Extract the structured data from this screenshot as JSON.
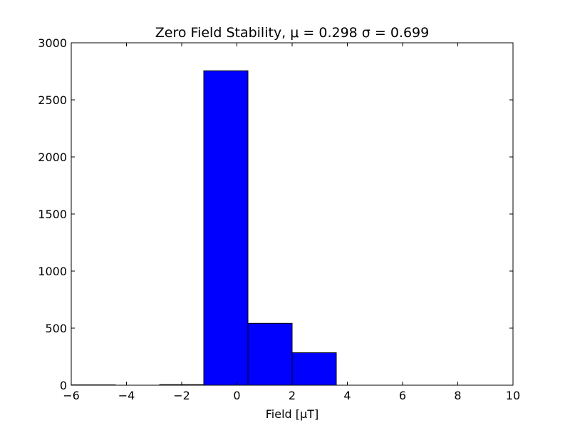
{
  "chart_data": {
    "type": "bar",
    "title": "Zero Field Stability, μ = 0.298 σ = 0.699",
    "xlabel": "Field [μT]",
    "ylabel": "",
    "xlim": [
      -6,
      10
    ],
    "ylim": [
      0,
      3000
    ],
    "xticks": [
      -6,
      -4,
      -2,
      0,
      2,
      4,
      6,
      8,
      10
    ],
    "xtick_labels": [
      "−6",
      "−4",
      "−2",
      "0",
      "2",
      "4",
      "6",
      "8",
      "10"
    ],
    "yticks": [
      0,
      500,
      1000,
      1500,
      2000,
      2500,
      3000
    ],
    "ytick_labels": [
      "0",
      "500",
      "1000",
      "1500",
      "2000",
      "2500",
      "3000"
    ],
    "grid": false,
    "bar_color": "#0000ff",
    "edge_color": "#000000",
    "bins": [
      {
        "x0": -6.0,
        "x1": -4.4,
        "count": 3
      },
      {
        "x0": -4.4,
        "x1": -2.8,
        "count": 0
      },
      {
        "x0": -2.8,
        "x1": -1.2,
        "count": 5
      },
      {
        "x0": -1.2,
        "x1": 0.4,
        "count": 2755
      },
      {
        "x0": 0.4,
        "x1": 2.0,
        "count": 542
      },
      {
        "x0": 2.0,
        "x1": 3.6,
        "count": 285
      }
    ]
  }
}
